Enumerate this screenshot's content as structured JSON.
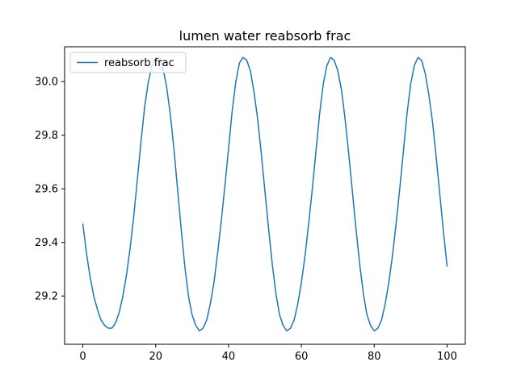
{
  "chart_data": {
    "type": "line",
    "title": "lumen water reabsorb frac",
    "xlabel": "",
    "ylabel": "",
    "xlim": [
      -5,
      105
    ],
    "ylim": [
      29.02,
      30.13
    ],
    "xticks": [
      0,
      20,
      40,
      60,
      80,
      100
    ],
    "yticks": [
      29.2,
      29.4,
      29.6,
      29.8,
      30.0
    ],
    "xtick_labels": [
      "0",
      "20",
      "40",
      "60",
      "80",
      "100"
    ],
    "ytick_labels": [
      "29.2",
      "29.4",
      "29.6",
      "29.8",
      "30.0"
    ],
    "grid": false,
    "legend_position": "upper-left",
    "line_color": "#1f77b4",
    "series": [
      {
        "name": "reabsorb frac",
        "x": [
          0,
          1,
          2,
          3,
          4,
          5,
          6,
          7,
          8,
          9,
          10,
          11,
          12,
          13,
          14,
          15,
          16,
          17,
          18,
          19,
          20,
          21,
          22,
          23,
          24,
          25,
          26,
          27,
          28,
          29,
          30,
          31,
          32,
          33,
          34,
          35,
          36,
          37,
          38,
          39,
          40,
          41,
          42,
          43,
          44,
          45,
          46,
          47,
          48,
          49,
          50,
          51,
          52,
          53,
          54,
          55,
          56,
          57,
          58,
          59,
          60,
          61,
          62,
          63,
          64,
          65,
          66,
          67,
          68,
          69,
          70,
          71,
          72,
          73,
          74,
          75,
          76,
          77,
          78,
          79,
          80,
          81,
          82,
          83,
          84,
          85,
          86,
          87,
          88,
          89,
          90,
          91,
          92,
          93,
          94,
          95,
          96,
          97,
          98,
          99,
          100
        ],
        "values": [
          29.47,
          29.36,
          29.27,
          29.2,
          29.15,
          29.11,
          29.09,
          29.08,
          29.08,
          29.1,
          29.14,
          29.2,
          29.28,
          29.38,
          29.5,
          29.64,
          29.78,
          29.91,
          30.0,
          30.06,
          30.09,
          30.09,
          30.05,
          29.98,
          29.88,
          29.75,
          29.6,
          29.45,
          29.31,
          29.2,
          29.13,
          29.09,
          29.07,
          29.08,
          29.11,
          29.17,
          29.25,
          29.36,
          29.48,
          29.61,
          29.75,
          29.89,
          30.0,
          30.07,
          30.09,
          30.08,
          30.04,
          29.96,
          29.86,
          29.73,
          29.59,
          29.45,
          29.32,
          29.21,
          29.13,
          29.09,
          29.07,
          29.08,
          29.11,
          29.17,
          29.25,
          29.35,
          29.47,
          29.6,
          29.74,
          29.88,
          29.99,
          30.06,
          30.09,
          30.08,
          30.04,
          29.97,
          29.86,
          29.73,
          29.59,
          29.45,
          29.32,
          29.21,
          29.13,
          29.09,
          29.07,
          29.08,
          29.11,
          29.17,
          29.25,
          29.35,
          29.47,
          29.6,
          29.74,
          29.88,
          29.99,
          30.06,
          30.09,
          30.08,
          30.03,
          29.95,
          29.85,
          29.72,
          29.58,
          29.44,
          29.31
        ]
      }
    ]
  }
}
